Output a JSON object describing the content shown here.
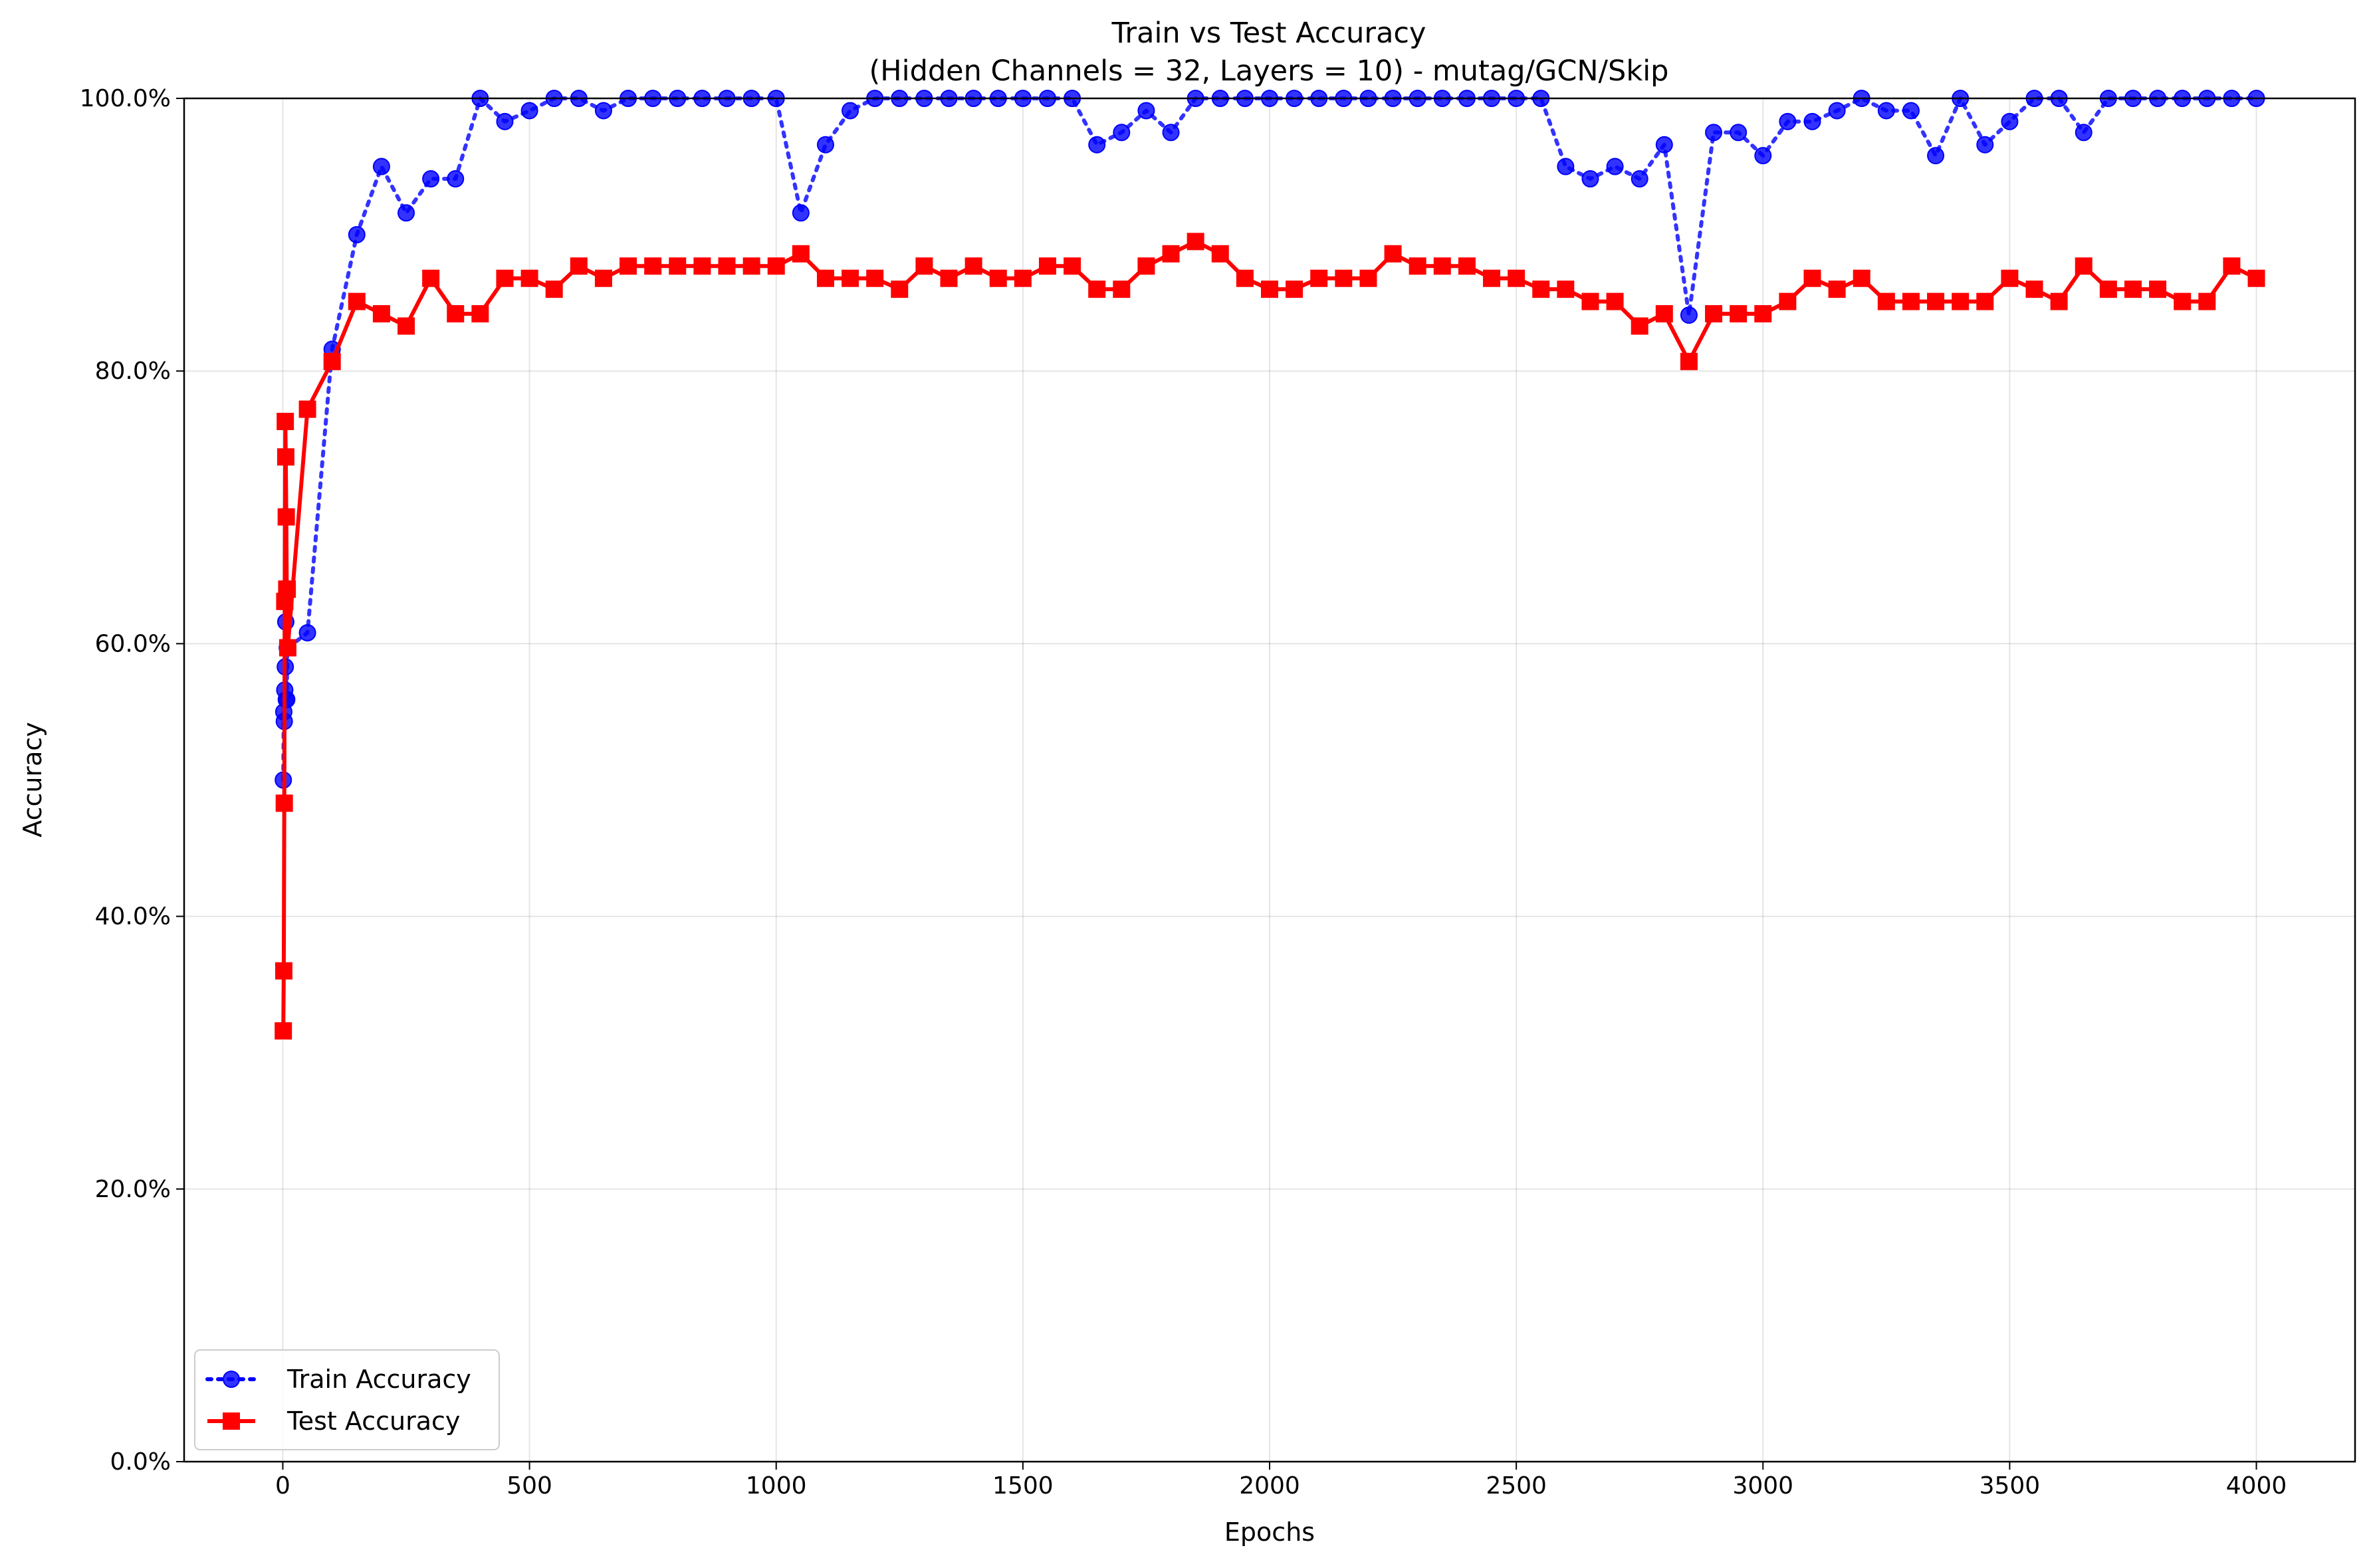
{
  "chart_data": {
    "type": "line",
    "title": "Train vs Test Accuracy",
    "subtitle": "(Hidden Channels = 32, Layers = 10) - mutag/GCN/Skip",
    "xlabel": "Epochs",
    "ylabel": "Accuracy",
    "xlim": [
      -200,
      4200
    ],
    "ylim": [
      0,
      1
    ],
    "xticks": [
      0,
      500,
      1000,
      1500,
      2000,
      2500,
      3000,
      3500,
      4000
    ],
    "xtick_labels": [
      "0",
      "500",
      "1000",
      "1500",
      "2000",
      "2500",
      "3000",
      "3500",
      "4000"
    ],
    "yticks": [
      0,
      0.2,
      0.4,
      0.6,
      0.8,
      1.0
    ],
    "ytick_labels": [
      "0.0%",
      "20.0%",
      "40.0%",
      "60.0%",
      "80.0%",
      "100.0%"
    ],
    "grid": true,
    "legend_position": "lower-left",
    "series": [
      {
        "name": "Train Accuracy",
        "color": "#0000ff",
        "line_style": "dotted",
        "marker": "circle",
        "x": [
          1,
          2,
          3,
          4,
          5,
          6,
          7,
          8,
          9,
          10,
          50,
          100,
          150,
          200,
          250,
          300,
          350,
          400,
          450,
          500,
          550,
          600,
          650,
          700,
          750,
          800,
          850,
          900,
          950,
          1000,
          1050,
          1100,
          1150,
          1200,
          1250,
          1300,
          1350,
          1400,
          1450,
          1500,
          1550,
          1600,
          1650,
          1700,
          1750,
          1800,
          1850,
          1900,
          1950,
          2000,
          2050,
          2100,
          2150,
          2200,
          2250,
          2300,
          2350,
          2400,
          2450,
          2500,
          2550,
          2600,
          2650,
          2700,
          2750,
          2800,
          2850,
          2900,
          2950,
          3000,
          3050,
          3100,
          3150,
          3200,
          3250,
          3300,
          3350,
          3400,
          3450,
          3500,
          3550,
          3600,
          3650,
          3700,
          3750,
          3800,
          3850,
          3900,
          3950,
          4000
        ],
        "y": [
          0.5,
          0.55,
          0.543,
          0.566,
          0.583,
          0.616,
          0.559,
          0.559,
          0.597,
          0.597,
          0.608,
          0.816,
          0.9,
          0.95,
          0.916,
          0.941,
          0.941,
          1.0,
          0.983,
          0.991,
          1.0,
          1.0,
          0.991,
          1.0,
          1.0,
          1.0,
          1.0,
          1.0,
          1.0,
          1.0,
          0.916,
          0.966,
          0.991,
          1.0,
          1.0,
          1.0,
          1.0,
          1.0,
          1.0,
          1.0,
          1.0,
          1.0,
          0.966,
          0.975,
          0.991,
          0.975,
          1.0,
          1.0,
          1.0,
          1.0,
          1.0,
          1.0,
          1.0,
          1.0,
          1.0,
          1.0,
          1.0,
          1.0,
          1.0,
          1.0,
          1.0,
          0.95,
          0.941,
          0.95,
          0.941,
          0.966,
          0.841,
          0.975,
          0.975,
          0.958,
          0.983,
          0.983,
          0.991,
          1.0,
          0.991,
          0.991,
          0.958,
          1.0,
          0.966,
          0.983,
          1.0,
          1.0,
          0.975,
          1.0,
          1.0,
          1.0,
          1.0,
          1.0,
          1.0,
          1.0
        ]
      },
      {
        "name": "Test Accuracy",
        "color": "#ff0000",
        "line_style": "solid",
        "marker": "square",
        "x": [
          1,
          2,
          3,
          4,
          5,
          6,
          7,
          8,
          9,
          10,
          50,
          100,
          150,
          200,
          250,
          300,
          350,
          400,
          450,
          500,
          550,
          600,
          650,
          700,
          750,
          800,
          850,
          900,
          950,
          1000,
          1050,
          1100,
          1150,
          1200,
          1250,
          1300,
          1350,
          1400,
          1450,
          1500,
          1550,
          1600,
          1650,
          1700,
          1750,
          1800,
          1850,
          1900,
          1950,
          2000,
          2050,
          2100,
          2150,
          2200,
          2250,
          2300,
          2350,
          2400,
          2450,
          2500,
          2550,
          2600,
          2650,
          2700,
          2750,
          2800,
          2850,
          2900,
          2950,
          3000,
          3050,
          3100,
          3150,
          3200,
          3250,
          3300,
          3350,
          3400,
          3450,
          3500,
          3550,
          3600,
          3650,
          3700,
          3750,
          3800,
          3850,
          3900,
          3950,
          4000
        ],
        "y": [
          0.316,
          0.36,
          0.483,
          0.631,
          0.763,
          0.737,
          0.693,
          0.64,
          0.64,
          0.597,
          0.772,
          0.807,
          0.851,
          0.842,
          0.833,
          0.868,
          0.842,
          0.842,
          0.868,
          0.868,
          0.86,
          0.877,
          0.868,
          0.877,
          0.877,
          0.877,
          0.877,
          0.877,
          0.877,
          0.877,
          0.886,
          0.868,
          0.868,
          0.868,
          0.86,
          0.877,
          0.868,
          0.877,
          0.868,
          0.868,
          0.877,
          0.877,
          0.86,
          0.86,
          0.877,
          0.886,
          0.895,
          0.886,
          0.868,
          0.86,
          0.86,
          0.868,
          0.868,
          0.868,
          0.886,
          0.877,
          0.877,
          0.877,
          0.868,
          0.868,
          0.86,
          0.86,
          0.851,
          0.851,
          0.833,
          0.842,
          0.807,
          0.842,
          0.842,
          0.842,
          0.851,
          0.868,
          0.86,
          0.868,
          0.851,
          0.851,
          0.851,
          0.851,
          0.851,
          0.868,
          0.86,
          0.851,
          0.877,
          0.86,
          0.86,
          0.86,
          0.851,
          0.851,
          0.877,
          0.868
        ]
      }
    ]
  }
}
